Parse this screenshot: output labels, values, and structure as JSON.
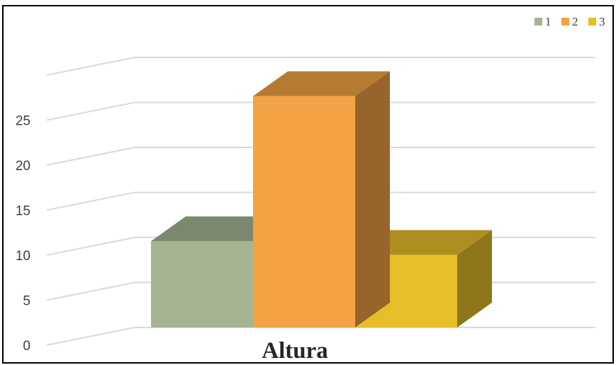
{
  "chart_data": {
    "type": "bar",
    "style": "3d-clustered-column",
    "categories": [
      "Altura"
    ],
    "series": [
      {
        "name": "1",
        "values": [
          9.5
        ],
        "color": "#a5b592"
      },
      {
        "name": "2",
        "values": [
          25.5
        ],
        "color": "#f3a344"
      },
      {
        "name": "3",
        "values": [
          8
        ],
        "color": "#e6be2a"
      }
    ],
    "y_ticks": [
      "0",
      "5",
      "10",
      "15",
      "20",
      "25"
    ],
    "ylim": [
      0,
      30
    ],
    "grid": true,
    "legend_position": "top-right"
  }
}
